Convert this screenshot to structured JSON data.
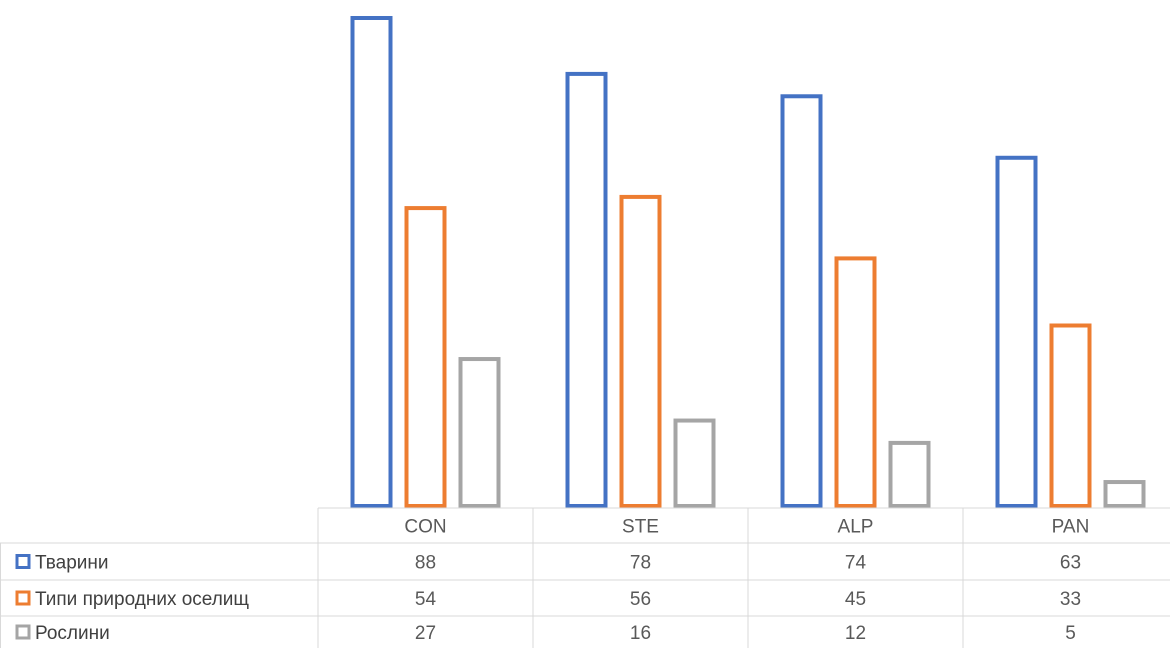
{
  "chart_data": {
    "type": "bar",
    "categories": [
      "CON",
      "STE",
      "ALP",
      "PAN"
    ],
    "series": [
      {
        "name": "Тварини",
        "values": [
          88,
          78,
          74,
          63
        ],
        "color": "#4472c4"
      },
      {
        "name": "Типи природних оселищ",
        "values": [
          54,
          56,
          45,
          33
        ],
        "color": "#ed7d31"
      },
      {
        "name": "Рослини",
        "values": [
          27,
          16,
          12,
          5
        ],
        "color": "#a5a5a5"
      }
    ],
    "ylim": [
      0,
      88
    ],
    "bar_style": "outline",
    "data_table": true,
    "legend": "data-table-left",
    "grid": false
  }
}
